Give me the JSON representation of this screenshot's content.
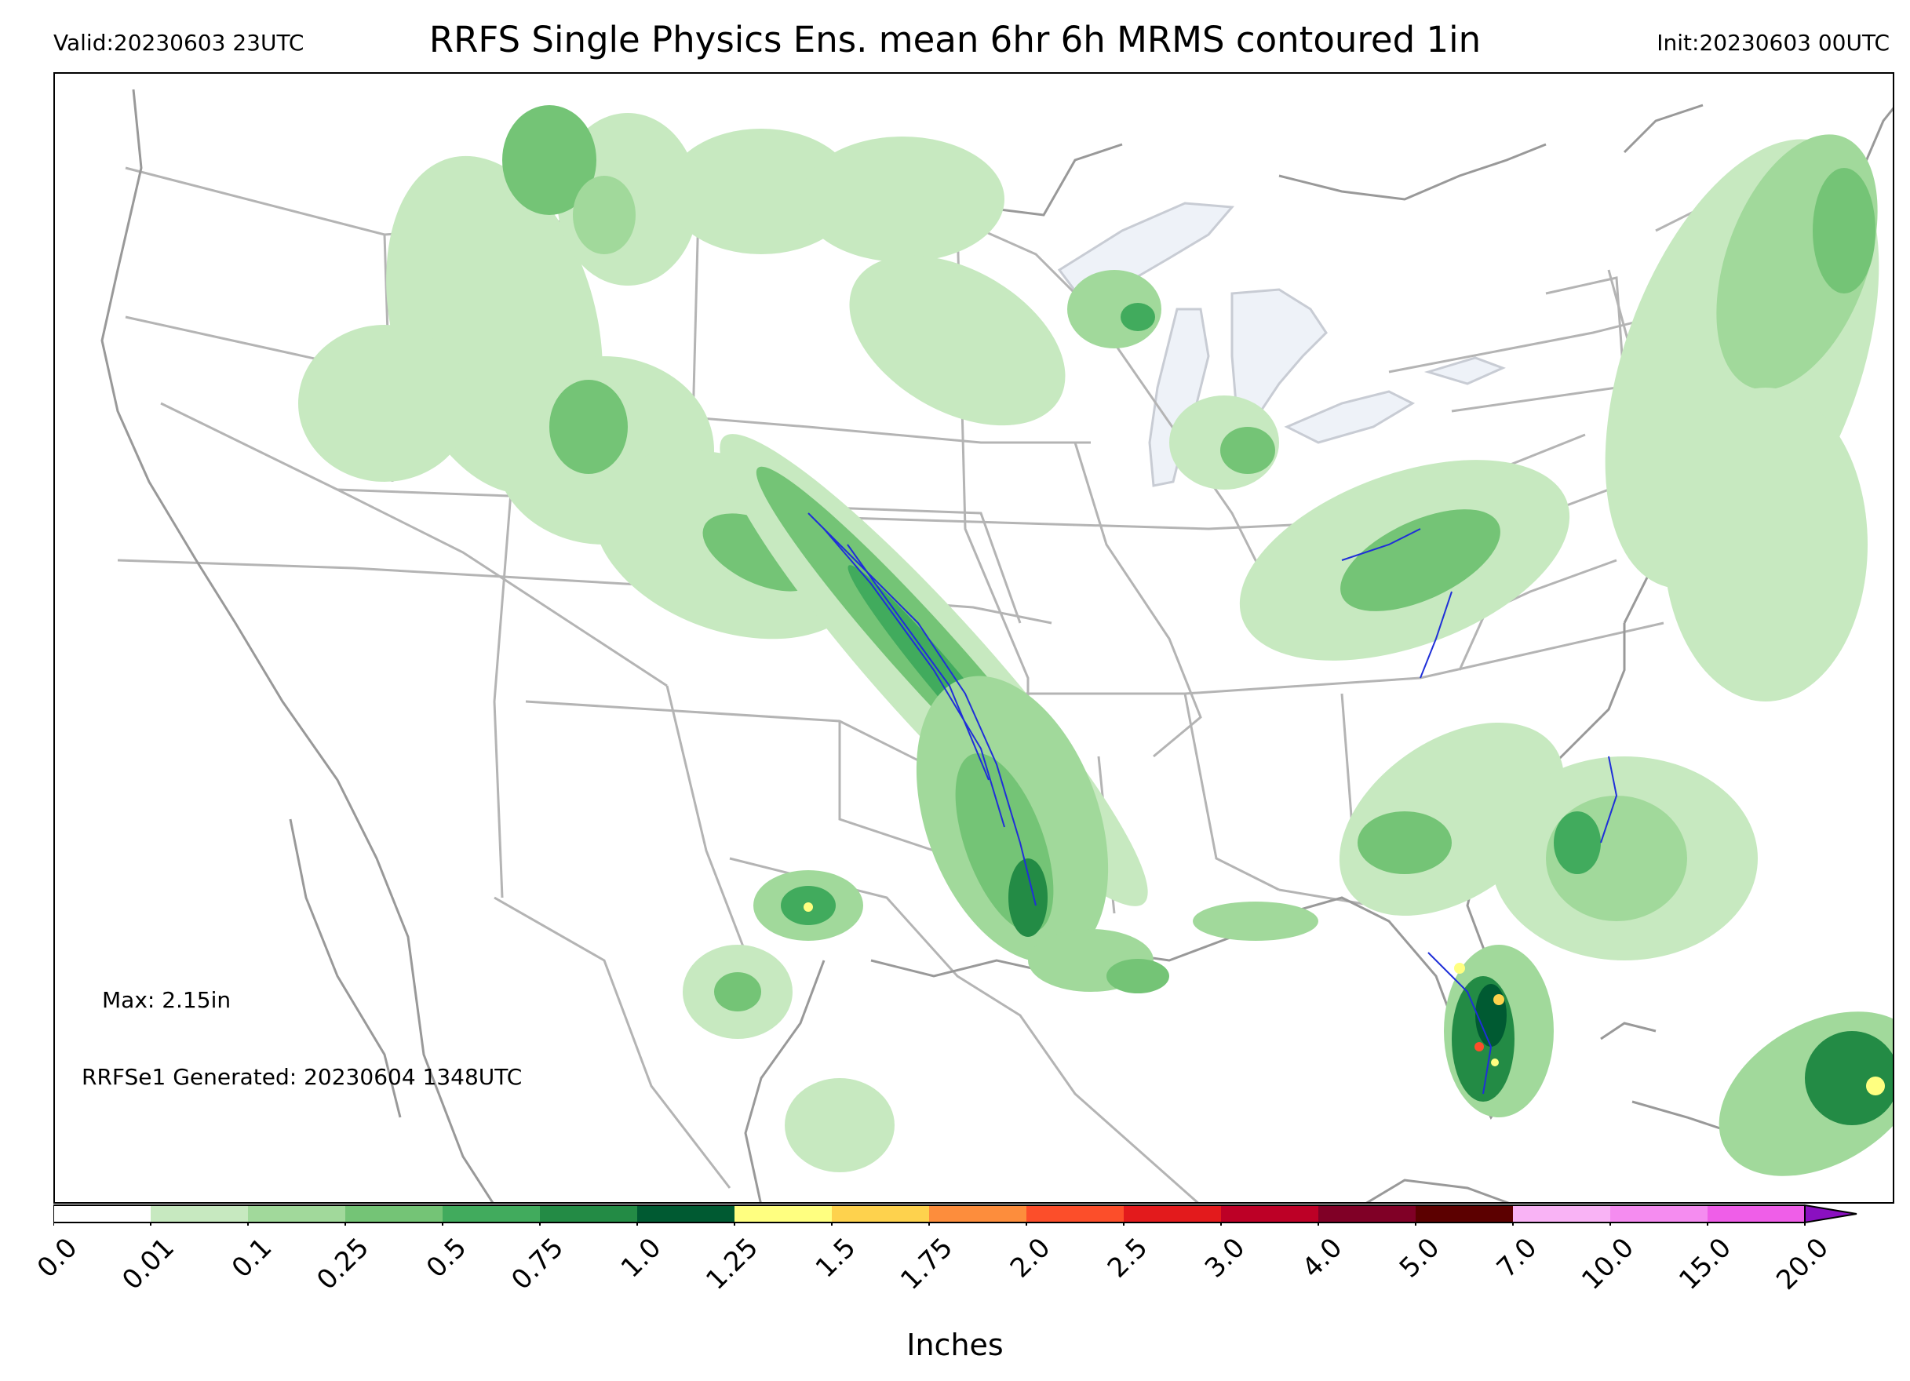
{
  "header": {
    "valid": "Valid:20230603 23UTC",
    "title": "RRFS Single Physics Ens. mean 6hr 6h MRMS contoured 1in",
    "init": "Init:20230603 00UTC"
  },
  "notes": {
    "max": "Max: 2.15in",
    "generated": "RRFSe1 Generated: 20230604 1348UTC"
  },
  "colorbar": {
    "label": "Inches",
    "ticks": [
      "0.0",
      "0.01",
      "0.1",
      "0.25",
      "0.5",
      "0.75",
      "1.0",
      "1.25",
      "1.5",
      "1.75",
      "2.0",
      "2.5",
      "3.0",
      "4.0",
      "5.0",
      "7.0",
      "10.0",
      "15.0",
      "20.0"
    ],
    "colors": [
      "#ffffff",
      "#c7e9c0",
      "#a1d99b",
      "#74c476",
      "#41ab5d",
      "#238b45",
      "#005a32",
      "#ffff80",
      "#fed24d",
      "#fd8d3c",
      "#fc4e2a",
      "#e31a1c",
      "#bd0026",
      "#800026",
      "#5c0000",
      "#f9b3f5",
      "#f58cf0",
      "#ef5ee8",
      "#e020e0",
      "#c010d8",
      "#8a10c0"
    ],
    "extend": "max"
  },
  "map": {
    "precip_colors": {
      "light": "#c7e9c0",
      "lightmed": "#a1d99b",
      "medium": "#74c476",
      "dark": "#41ab5d",
      "darker": "#238b45",
      "darkest": "#005a32",
      "yellow": "#ffff80",
      "orange": "#fed24d",
      "red": "#fc4e2a"
    },
    "border_color": "#b4b4b4",
    "lake_fill": "#eef2f8",
    "mrms_contour_color": "#1f2fd8"
  }
}
